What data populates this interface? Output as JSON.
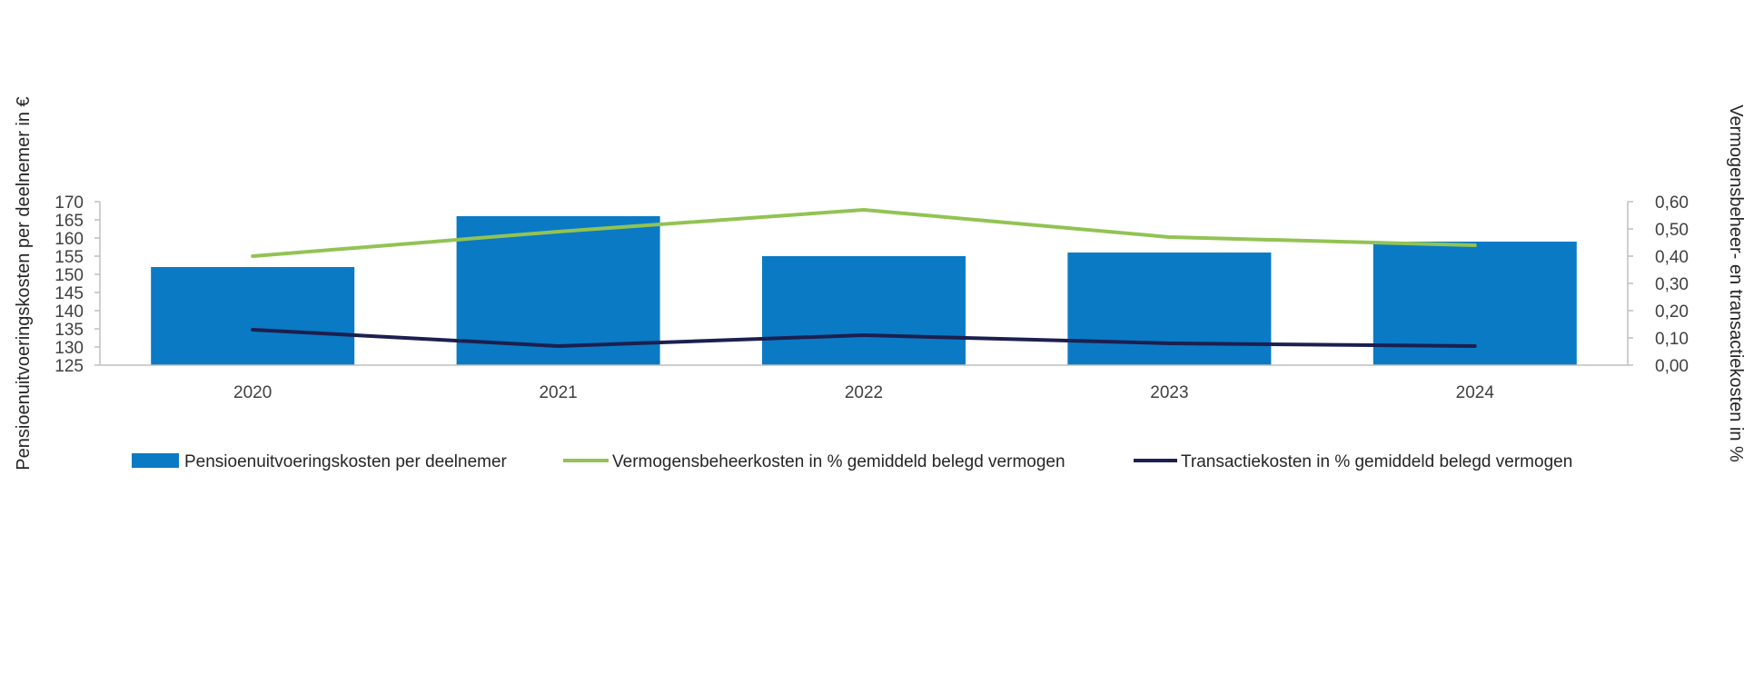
{
  "chart_data": {
    "type": "bar",
    "categories": [
      "2020",
      "2021",
      "2022",
      "2023",
      "2024"
    ],
    "y_left": {
      "label": "Pensioenuitvoeringskosten per deelnemer in €",
      "range": [
        125,
        170
      ],
      "ticks": [
        "125",
        "130",
        "135",
        "140",
        "145",
        "150",
        "155",
        "160",
        "165",
        "170"
      ]
    },
    "y_right": {
      "label": "Vermogensbeheer- en transactiekosten in %",
      "range": [
        0,
        0.6
      ],
      "ticks": [
        "0,00",
        "0,10",
        "0,20",
        "0,30",
        "0,40",
        "0,50",
        "0,60"
      ]
    },
    "grid": false,
    "legend_position": "bottom",
    "series": [
      {
        "name": "Pensioenuitvoeringskosten per deelnemer",
        "type": "bar",
        "axis": "left",
        "color": "#0a7ac4",
        "values": [
          152,
          166,
          155,
          156,
          159
        ]
      },
      {
        "name": "Vermogensbeheerkosten in % gemiddeld belegd vermogen",
        "type": "line",
        "axis": "right",
        "color": "#92c353",
        "values": [
          0.4,
          0.49,
          0.57,
          0.47,
          0.44
        ]
      },
      {
        "name": "Transactiekosten in % gemiddeld belegd vermogen",
        "type": "line",
        "axis": "right",
        "color": "#1c1f4f",
        "values": [
          0.13,
          0.07,
          0.11,
          0.08,
          0.07
        ]
      }
    ]
  }
}
